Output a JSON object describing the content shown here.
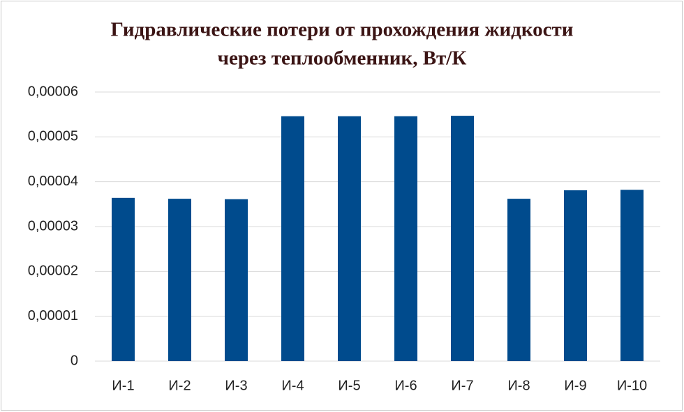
{
  "chart_data": {
    "type": "bar",
    "title": [
      "Гидравлические потери от прохождения жидкости",
      "через теплообменник, Вт/К"
    ],
    "categories": [
      "И-1",
      "И-2",
      "И-3",
      "И-4",
      "И-5",
      "И-6",
      "И-7",
      "И-8",
      "И-9",
      "И-10"
    ],
    "values": [
      3.64e-05,
      3.62e-05,
      3.61e-05,
      5.46e-05,
      5.46e-05,
      5.46e-05,
      5.47e-05,
      3.62e-05,
      3.81e-05,
      3.82e-05
    ],
    "color": "#004b8d",
    "ylim": [
      0,
      6e-05
    ],
    "yticks": [
      0,
      {
        "value": 1e-05,
        "label": "0,00001"
      },
      {
        "value": 2e-05,
        "label": "0,00002"
      },
      {
        "value": 3e-05,
        "label": "0,00003"
      },
      {
        "value": 4e-05,
        "label": "0,00004"
      },
      {
        "value": 5e-05,
        "label": "0,00005"
      },
      {
        "value": 6e-05,
        "label": "0,00006"
      }
    ],
    "grid": true
  }
}
